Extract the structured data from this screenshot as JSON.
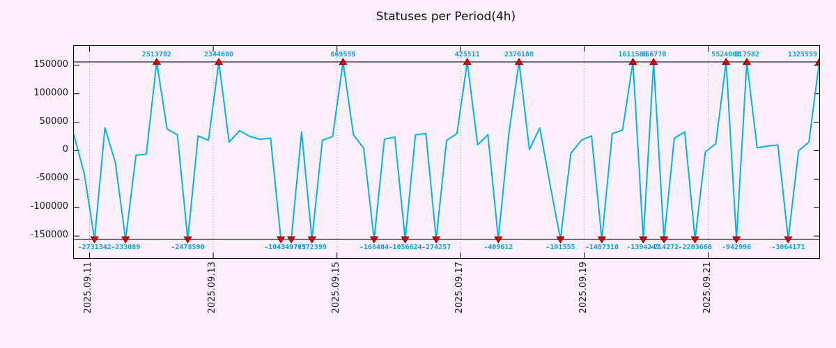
{
  "title": "Statuses per Period(4h)",
  "colors": {
    "background": "#fbf0fa",
    "line": "#00b3f0",
    "marker_fill": "#dd0000",
    "marker_edge": "#7a0000",
    "value_label": "#00a0f0",
    "boundary_line": "#3d3555",
    "grid": "#a898a8",
    "axis_text": "#1a1a1a"
  },
  "chart_data": {
    "type": "line",
    "title": "Statuses per Period(4h)",
    "period": "4h",
    "xlabel": "",
    "ylabel": "",
    "legend": "none",
    "grid": "vertical-dotted",
    "y_ticks": [
      150000,
      100000,
      50000,
      0,
      -50000,
      -100000,
      -150000
    ],
    "y_max": 184000,
    "y_min": -189000,
    "clip_value": 156000,
    "x_tick_labels": [
      "2025.09.11",
      "2025.09.13",
      "2025.09.15",
      "2025.09.17",
      "2025.09.19",
      "2025.09.21"
    ],
    "x_tick_pos": [
      0.021,
      0.187,
      0.353,
      0.519,
      0.685,
      0.851
    ],
    "points": [
      28000,
      -40000,
      -2731342,
      40000,
      -20000,
      -233089,
      -8000,
      -6000,
      2513702,
      38000,
      28000,
      -2478590,
      26000,
      18000,
      2344600,
      15000,
      35000,
      25000,
      20000,
      22000,
      -1043497,
      -349785,
      33000,
      -372399,
      18000,
      25000,
      669559,
      28000,
      4000,
      -166404,
      20000,
      24000,
      -1056624,
      28000,
      30000,
      -274257,
      18000,
      30000,
      425511,
      10000,
      28000,
      -409612,
      28000,
      2376188,
      2000,
      40000,
      -60000,
      -191555,
      -5000,
      18000,
      26000,
      -1487310,
      30000,
      36000,
      1611580,
      -1394247,
      656770,
      -214272,
      22000,
      33000,
      -2203668,
      -2000,
      12000,
      5524001,
      -942996,
      317582,
      5000,
      8000,
      10000,
      -3064171,
      0,
      15000,
      1325559
    ],
    "top_outlier_labels": [
      "2513702",
      "2344600",
      "669559",
      "425511",
      "2376188",
      "1611580",
      "656770",
      "5524001",
      "317582",
      "1325559"
    ],
    "bottom_outlier_labels": [
      "-2731342",
      "-233089",
      "-2478590",
      "-1043497",
      "-349785",
      "-372399",
      "-166404",
      "-1056624",
      "-274257",
      "-409612",
      "-191555",
      "-1487310",
      "-1394247",
      "-214272",
      "-2203668",
      "-942996",
      "-3064171"
    ]
  }
}
